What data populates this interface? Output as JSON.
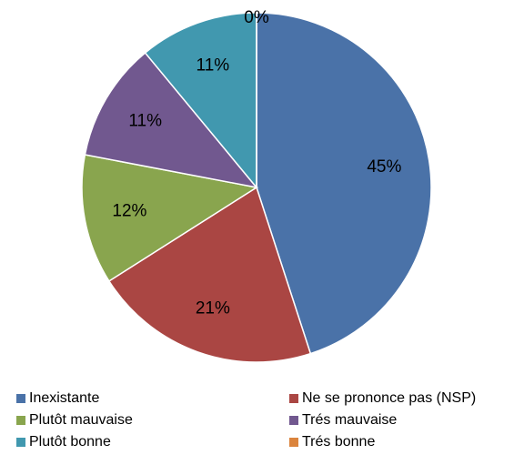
{
  "chart_data": {
    "type": "pie",
    "categories": [
      "Inexistante",
      "Ne se prononce pas (NSP)",
      "Plutôt mauvaise",
      "Trés mauvaise",
      "Plutôt bonne",
      "Trés bonne"
    ],
    "values": [
      45,
      21,
      12,
      11,
      11,
      0
    ],
    "value_labels": [
      "45%",
      "21%",
      "12%",
      "11%",
      "11%",
      "0%"
    ],
    "colors": [
      "#4a72a8",
      "#aa4643",
      "#89a54e",
      "#71588f",
      "#4198af",
      "#db843d"
    ],
    "legend": "bottom"
  }
}
